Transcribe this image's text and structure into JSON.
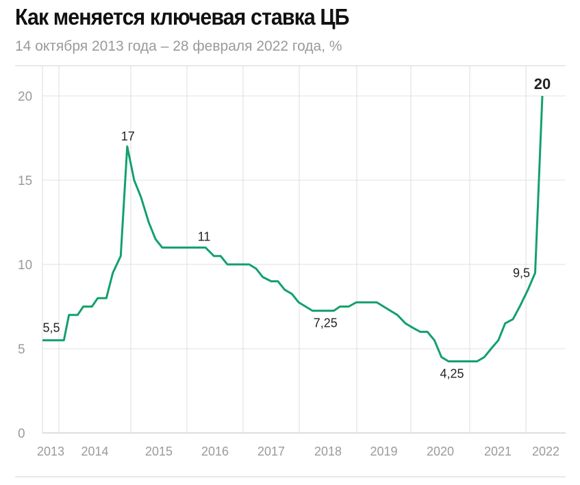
{
  "chart_data": {
    "type": "line",
    "title": "Как меняется ключевая ставка ЦБ",
    "subtitle": "14 октября 2013 года – 28 февраля 2022 года, %",
    "xlabel": "",
    "ylabel": "",
    "ylim": [
      0,
      20
    ],
    "yticks": [
      "0",
      "5",
      "10",
      "15",
      "20"
    ],
    "xticks": [
      "2013",
      "2014",
      "2015",
      "2016",
      "2017",
      "2018",
      "2019",
      "2020",
      "2021",
      "2022"
    ],
    "grid": true,
    "color": "#12a06b",
    "series": [
      {
        "name": "Ключевая ставка",
        "points": [
          [
            2013.79,
            5.5
          ],
          [
            2014.07,
            5.5
          ],
          [
            2014.14,
            7
          ],
          [
            2014.26,
            7
          ],
          [
            2014.34,
            7.5
          ],
          [
            2014.46,
            7.5
          ],
          [
            2014.54,
            8
          ],
          [
            2014.66,
            8
          ],
          [
            2014.75,
            9.5
          ],
          [
            2014.86,
            10.5
          ],
          [
            2014.95,
            17
          ],
          [
            2015.06,
            15
          ],
          [
            2015.18,
            14
          ],
          [
            2015.32,
            12.5
          ],
          [
            2015.44,
            11.5
          ],
          [
            2015.56,
            11
          ],
          [
            2016.33,
            11
          ],
          [
            2016.48,
            10.5
          ],
          [
            2016.6,
            10.5
          ],
          [
            2016.72,
            10
          ],
          [
            2017.11,
            10
          ],
          [
            2017.23,
            9.75
          ],
          [
            2017.35,
            9.25
          ],
          [
            2017.5,
            9
          ],
          [
            2017.62,
            9
          ],
          [
            2017.74,
            8.5
          ],
          [
            2017.87,
            8.25
          ],
          [
            2017.99,
            7.75
          ],
          [
            2018.23,
            7.25
          ],
          [
            2018.6,
            7.25
          ],
          [
            2018.71,
            7.5
          ],
          [
            2018.86,
            7.5
          ],
          [
            2018.99,
            7.75
          ],
          [
            2019.37,
            7.75
          ],
          [
            2019.75,
            7
          ],
          [
            2019.9,
            6.5
          ],
          [
            2020.03,
            6.25
          ],
          [
            2020.16,
            6
          ],
          [
            2020.28,
            6
          ],
          [
            2020.4,
            5.5
          ],
          [
            2020.52,
            4.5
          ],
          [
            2020.64,
            4.25
          ],
          [
            2021.13,
            4.25
          ],
          [
            2021.26,
            4.5
          ],
          [
            2021.38,
            5
          ],
          [
            2021.51,
            5.5
          ],
          [
            2021.63,
            6.5
          ],
          [
            2021.77,
            6.75
          ],
          [
            2021.89,
            7.5
          ],
          [
            2022.02,
            8.5
          ],
          [
            2022.09,
            9.5
          ],
          [
            2022.16,
            20
          ]
        ]
      }
    ],
    "annotations": [
      {
        "text": "5,5",
        "x": 2013.79,
        "y": 5.5
      },
      {
        "text": "17",
        "x": 2014.95,
        "y": 17
      },
      {
        "text": "11",
        "x": 2016.33,
        "y": 11
      },
      {
        "text": "7,25",
        "x": 2018.23,
        "y": 7.25
      },
      {
        "text": "4,25",
        "x": 2020.64,
        "y": 4.25
      },
      {
        "text": "9,5",
        "x": 2022.09,
        "y": 9.5
      },
      {
        "text": "20",
        "x": 2022.16,
        "y": 20
      }
    ]
  }
}
